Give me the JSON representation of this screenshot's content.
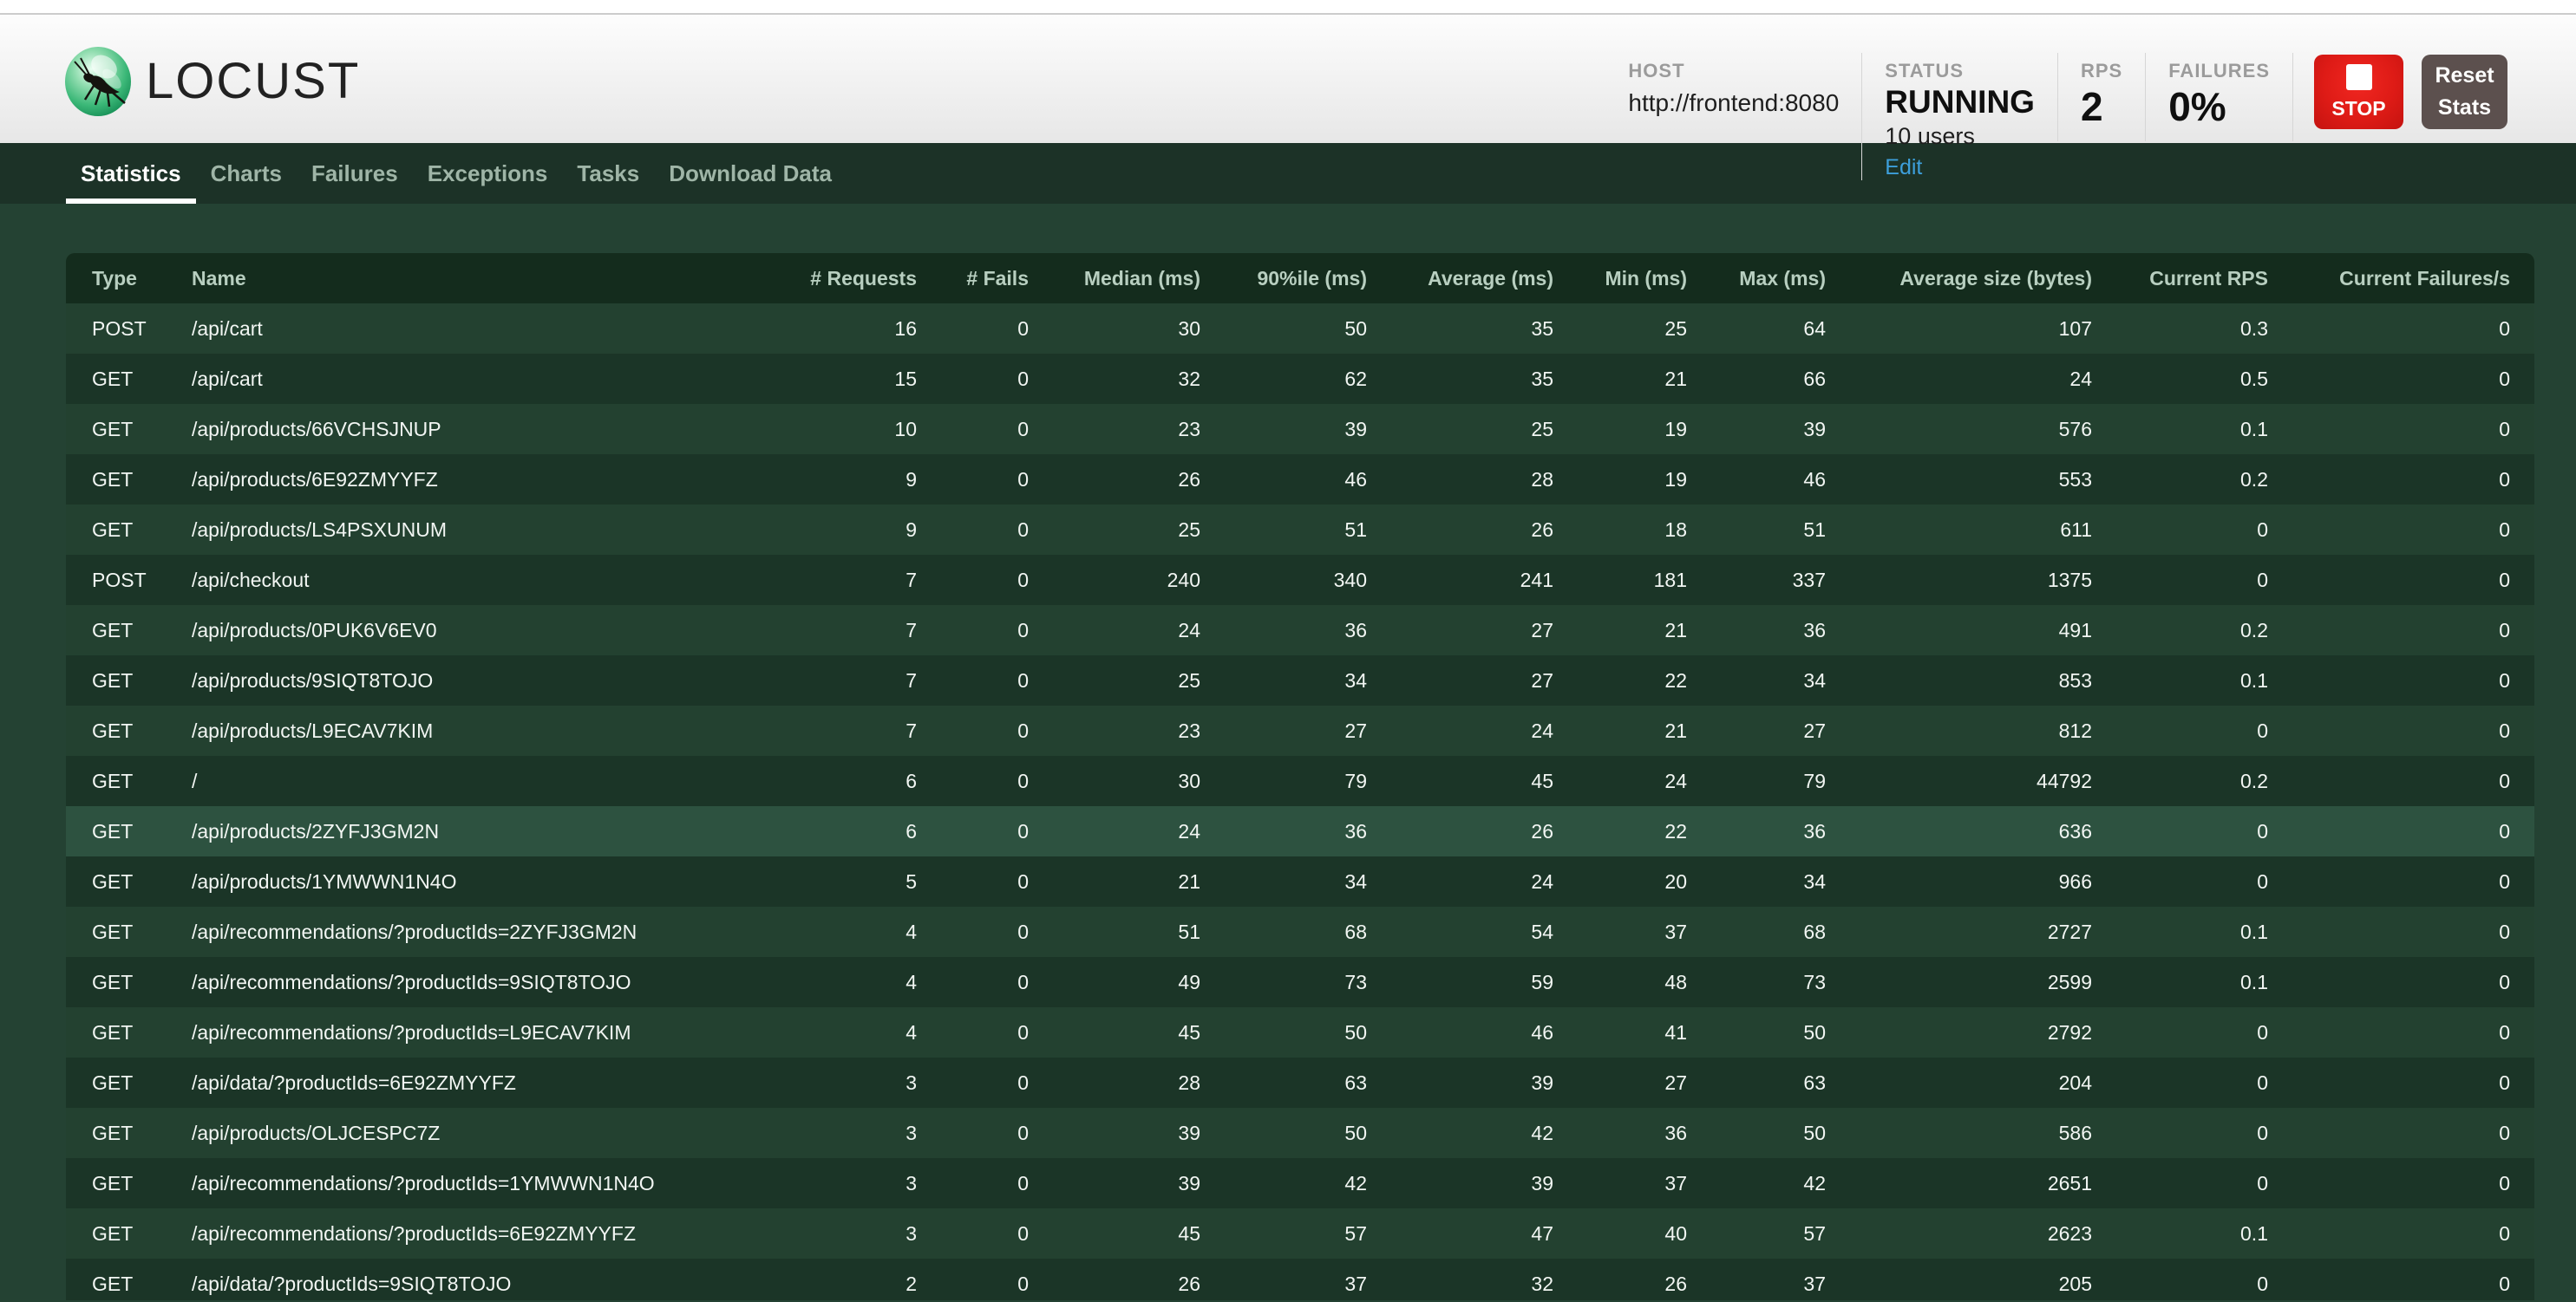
{
  "header": {
    "logo_text": "LOCUST",
    "host": {
      "label": "HOST",
      "value": "http://frontend:8080"
    },
    "status": {
      "label": "STATUS",
      "value": "RUNNING",
      "users": "10 users",
      "edit_label": "Edit"
    },
    "rps": {
      "label": "RPS",
      "value": "2"
    },
    "failures": {
      "label": "FAILURES",
      "value": "0%"
    },
    "stop_label": "STOP",
    "reset_label": "Reset Stats"
  },
  "nav": {
    "tabs": [
      {
        "label": "Statistics",
        "active": true
      },
      {
        "label": "Charts",
        "active": false
      },
      {
        "label": "Failures",
        "active": false
      },
      {
        "label": "Exceptions",
        "active": false
      },
      {
        "label": "Tasks",
        "active": false
      },
      {
        "label": "Download Data",
        "active": false
      }
    ]
  },
  "table": {
    "columns": [
      "Type",
      "Name",
      "# Requests",
      "# Fails",
      "Median (ms)",
      "90%ile (ms)",
      "Average (ms)",
      "Min (ms)",
      "Max (ms)",
      "Average size (bytes)",
      "Current RPS",
      "Current Failures/s"
    ],
    "rows": [
      {
        "type": "POST",
        "name": "/api/cart",
        "requests": "16",
        "fails": "0",
        "median": "30",
        "p90": "50",
        "average": "35",
        "min": "25",
        "max": "64",
        "avg_size": "107",
        "current_rps": "0.3",
        "current_failures": "0",
        "highlighted": false
      },
      {
        "type": "GET",
        "name": "/api/cart",
        "requests": "15",
        "fails": "0",
        "median": "32",
        "p90": "62",
        "average": "35",
        "min": "21",
        "max": "66",
        "avg_size": "24",
        "current_rps": "0.5",
        "current_failures": "0",
        "highlighted": false
      },
      {
        "type": "GET",
        "name": "/api/products/66VCHSJNUP",
        "requests": "10",
        "fails": "0",
        "median": "23",
        "p90": "39",
        "average": "25",
        "min": "19",
        "max": "39",
        "avg_size": "576",
        "current_rps": "0.1",
        "current_failures": "0",
        "highlighted": false
      },
      {
        "type": "GET",
        "name": "/api/products/6E92ZMYYFZ",
        "requests": "9",
        "fails": "0",
        "median": "26",
        "p90": "46",
        "average": "28",
        "min": "19",
        "max": "46",
        "avg_size": "553",
        "current_rps": "0.2",
        "current_failures": "0",
        "highlighted": false
      },
      {
        "type": "GET",
        "name": "/api/products/LS4PSXUNUM",
        "requests": "9",
        "fails": "0",
        "median": "25",
        "p90": "51",
        "average": "26",
        "min": "18",
        "max": "51",
        "avg_size": "611",
        "current_rps": "0",
        "current_failures": "0",
        "highlighted": false
      },
      {
        "type": "POST",
        "name": "/api/checkout",
        "requests": "7",
        "fails": "0",
        "median": "240",
        "p90": "340",
        "average": "241",
        "min": "181",
        "max": "337",
        "avg_size": "1375",
        "current_rps": "0",
        "current_failures": "0",
        "highlighted": false
      },
      {
        "type": "GET",
        "name": "/api/products/0PUK6V6EV0",
        "requests": "7",
        "fails": "0",
        "median": "24",
        "p90": "36",
        "average": "27",
        "min": "21",
        "max": "36",
        "avg_size": "491",
        "current_rps": "0.2",
        "current_failures": "0",
        "highlighted": false
      },
      {
        "type": "GET",
        "name": "/api/products/9SIQT8TOJO",
        "requests": "7",
        "fails": "0",
        "median": "25",
        "p90": "34",
        "average": "27",
        "min": "22",
        "max": "34",
        "avg_size": "853",
        "current_rps": "0.1",
        "current_failures": "0",
        "highlighted": false
      },
      {
        "type": "GET",
        "name": "/api/products/L9ECAV7KIM",
        "requests": "7",
        "fails": "0",
        "median": "23",
        "p90": "27",
        "average": "24",
        "min": "21",
        "max": "27",
        "avg_size": "812",
        "current_rps": "0",
        "current_failures": "0",
        "highlighted": false
      },
      {
        "type": "GET",
        "name": "/",
        "requests": "6",
        "fails": "0",
        "median": "30",
        "p90": "79",
        "average": "45",
        "min": "24",
        "max": "79",
        "avg_size": "44792",
        "current_rps": "0.2",
        "current_failures": "0",
        "highlighted": false
      },
      {
        "type": "GET",
        "name": "/api/products/2ZYFJ3GM2N",
        "requests": "6",
        "fails": "0",
        "median": "24",
        "p90": "36",
        "average": "26",
        "min": "22",
        "max": "36",
        "avg_size": "636",
        "current_rps": "0",
        "current_failures": "0",
        "highlighted": true
      },
      {
        "type": "GET",
        "name": "/api/products/1YMWWN1N4O",
        "requests": "5",
        "fails": "0",
        "median": "21",
        "p90": "34",
        "average": "24",
        "min": "20",
        "max": "34",
        "avg_size": "966",
        "current_rps": "0",
        "current_failures": "0",
        "highlighted": false
      },
      {
        "type": "GET",
        "name": "/api/recommendations/?productIds=2ZYFJ3GM2N",
        "requests": "4",
        "fails": "0",
        "median": "51",
        "p90": "68",
        "average": "54",
        "min": "37",
        "max": "68",
        "avg_size": "2727",
        "current_rps": "0.1",
        "current_failures": "0",
        "highlighted": false
      },
      {
        "type": "GET",
        "name": "/api/recommendations/?productIds=9SIQT8TOJO",
        "requests": "4",
        "fails": "0",
        "median": "49",
        "p90": "73",
        "average": "59",
        "min": "48",
        "max": "73",
        "avg_size": "2599",
        "current_rps": "0.1",
        "current_failures": "0",
        "highlighted": false
      },
      {
        "type": "GET",
        "name": "/api/recommendations/?productIds=L9ECAV7KIM",
        "requests": "4",
        "fails": "0",
        "median": "45",
        "p90": "50",
        "average": "46",
        "min": "41",
        "max": "50",
        "avg_size": "2792",
        "current_rps": "0",
        "current_failures": "0",
        "highlighted": false
      },
      {
        "type": "GET",
        "name": "/api/data/?productIds=6E92ZMYYFZ",
        "requests": "3",
        "fails": "0",
        "median": "28",
        "p90": "63",
        "average": "39",
        "min": "27",
        "max": "63",
        "avg_size": "204",
        "current_rps": "0",
        "current_failures": "0",
        "highlighted": false
      },
      {
        "type": "GET",
        "name": "/api/products/OLJCESPC7Z",
        "requests": "3",
        "fails": "0",
        "median": "39",
        "p90": "50",
        "average": "42",
        "min": "36",
        "max": "50",
        "avg_size": "586",
        "current_rps": "0",
        "current_failures": "0",
        "highlighted": false
      },
      {
        "type": "GET",
        "name": "/api/recommendations/?productIds=1YMWWN1N4O",
        "requests": "3",
        "fails": "0",
        "median": "39",
        "p90": "42",
        "average": "39",
        "min": "37",
        "max": "42",
        "avg_size": "2651",
        "current_rps": "0",
        "current_failures": "0",
        "highlighted": false
      },
      {
        "type": "GET",
        "name": "/api/recommendations/?productIds=6E92ZMYYFZ",
        "requests": "3",
        "fails": "0",
        "median": "45",
        "p90": "57",
        "average": "47",
        "min": "40",
        "max": "57",
        "avg_size": "2623",
        "current_rps": "0.1",
        "current_failures": "0",
        "highlighted": false
      },
      {
        "type": "GET",
        "name": "/api/data/?productIds=9SIQT8TOJO",
        "requests": "2",
        "fails": "0",
        "median": "26",
        "p90": "37",
        "average": "32",
        "min": "26",
        "max": "37",
        "avg_size": "205",
        "current_rps": "0",
        "current_failures": "0",
        "highlighted": false
      }
    ]
  },
  "colors": {
    "nav_bg": "#1c3227",
    "content_bg": "#244233",
    "table_header_bg": "#142c1d",
    "row_light": "#234130",
    "row_dark": "#1b3527",
    "row_highlight": "#2d5240",
    "stop_red": "#de1b16",
    "reset_grey": "#5c504e",
    "edit_link_blue": "#3d9fdb",
    "active_tab": "#ffffff",
    "inactive_tab": "#9fb5a7"
  }
}
